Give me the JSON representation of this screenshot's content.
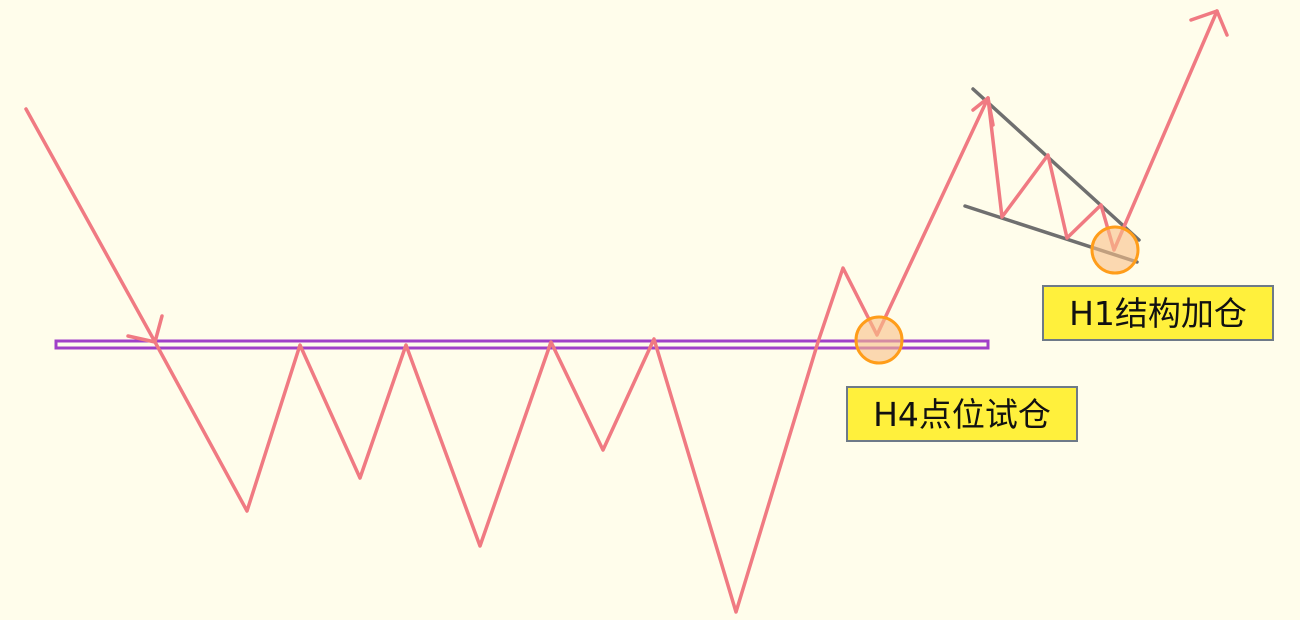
{
  "labels": {
    "h4_entry": "H4点位试仓",
    "h1_add": "H1结构加仓"
  },
  "colors": {
    "background": "#fffdeb",
    "price_path": "#f07a82",
    "key_level": "#a040c8",
    "trendline": "#6f6f6f",
    "marker_stroke": "#ff9d1a",
    "marker_fill": "#f8c088",
    "label_fill": "#fff03c",
    "label_border": "#6e7a88"
  }
}
